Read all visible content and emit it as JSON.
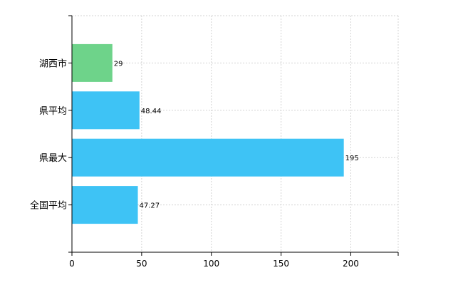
{
  "chart_data": {
    "type": "bar",
    "orientation": "horizontal",
    "categories": [
      "湖西市",
      "県平均",
      "県最大",
      "全国平均"
    ],
    "values": [
      29,
      48.44,
      195,
      47.27
    ],
    "value_labels": [
      "29",
      "48.44",
      "195",
      "47.27"
    ],
    "bar_colors": [
      "#6ed38a",
      "#3ec3f5",
      "#3ec3f5",
      "#3ec3f5"
    ],
    "x_ticks": [
      0,
      50,
      100,
      150,
      200
    ],
    "x_tick_labels": [
      "0",
      "50",
      "100",
      "150",
      "200"
    ],
    "xlim": [
      0,
      234
    ],
    "grid": true,
    "title": "",
    "xlabel": "",
    "ylabel": ""
  }
}
